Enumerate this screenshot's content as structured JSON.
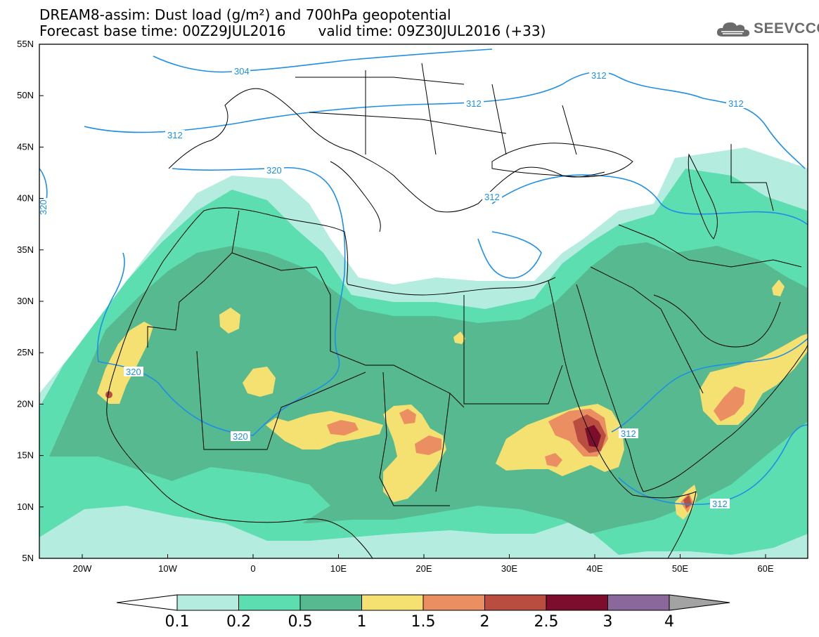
{
  "header": {
    "title_line1": "DREAM8-assim: Dust load (g/m²) and 700hPa geopotential",
    "base_time": "Forecast base time: 00Z29JUL2016",
    "valid_time": "valid time: 09Z30JUL2016 (+33)"
  },
  "logo": {
    "icon": "cloud-icon",
    "text": "SEEVCCC",
    "color": "#6b6b6b"
  },
  "map": {
    "lat_ticks": [
      "55N",
      "50N",
      "45N",
      "40N",
      "35N",
      "30N",
      "25N",
      "20N",
      "15N",
      "10N",
      "5N"
    ],
    "lon_ticks": [
      "20W",
      "10W",
      "0",
      "10E",
      "20E",
      "30E",
      "40E",
      "50E",
      "60E"
    ],
    "contour_labels": [
      "304",
      "312",
      "312",
      "312",
      "320",
      "312",
      "312",
      "320",
      "320",
      "312",
      "312",
      "320"
    ],
    "contour_color": "#1f8fe6"
  },
  "colorbar": {
    "labels": [
      "0.1",
      "0.2",
      "0.5",
      "1",
      "1.5",
      "2",
      "2.5",
      "3",
      "4"
    ],
    "colors": [
      "#ffffff",
      "#b4ece0",
      "#5cdeb0",
      "#57b98f",
      "#f5e072",
      "#eb8f62",
      "#b94d40",
      "#7c0d2d",
      "#8a689c",
      "#a3a3a3"
    ]
  }
}
